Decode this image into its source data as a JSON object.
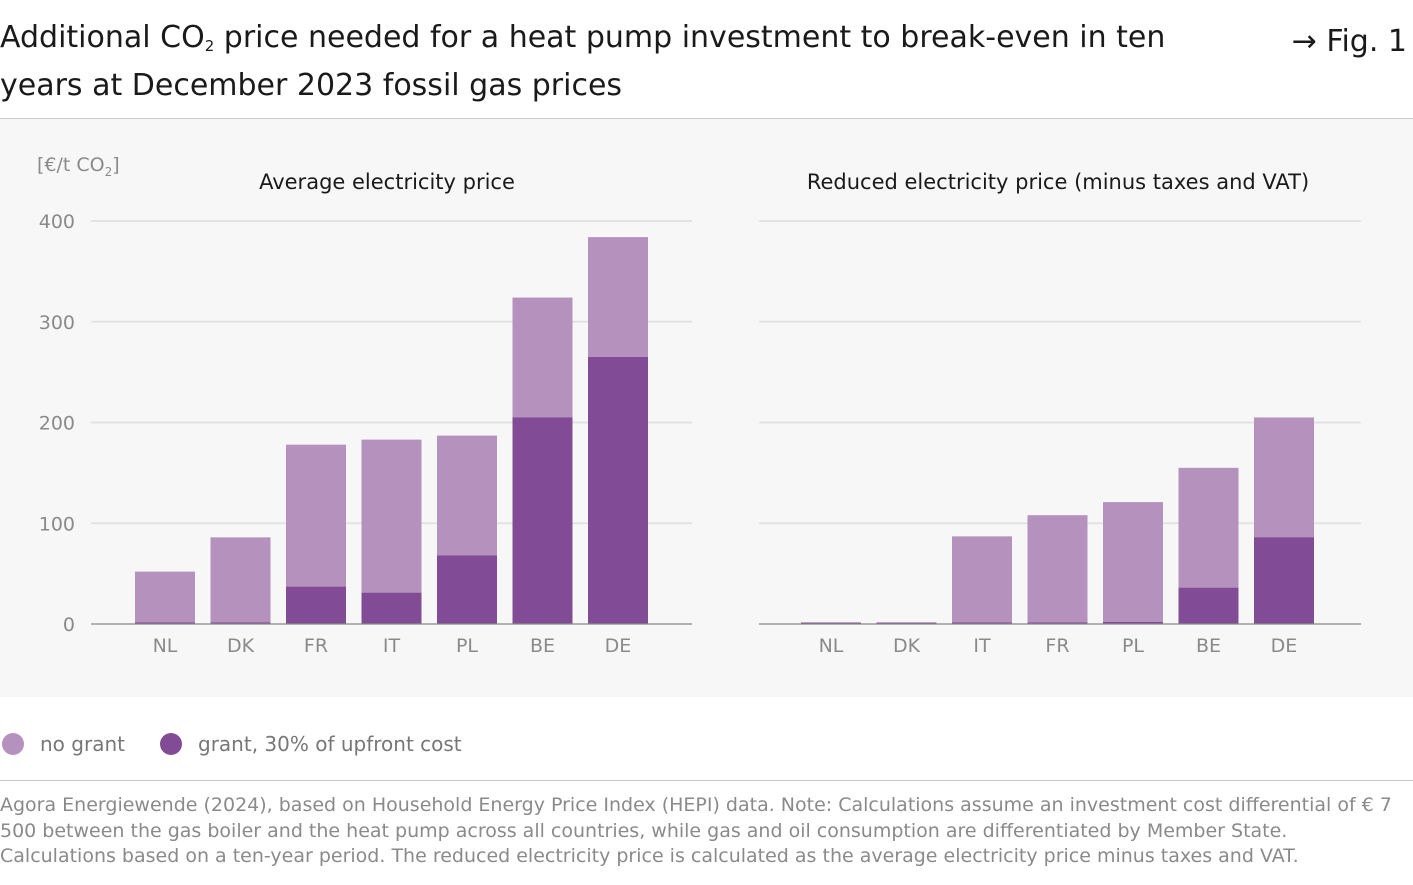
{
  "header": {
    "title_part1": "Additional CO",
    "title_sub": "2",
    "title_part2": " price needed for a heat pump investment to break-even in ten years at December 2023 fossil gas prices",
    "fig_label": "Fig. 1",
    "fig_arrow": "→"
  },
  "colors": {
    "no_grant": "#b592bd",
    "grant": "#814c95",
    "grid": "#e3e3e3",
    "axis": "#888888",
    "tick_text": "#8a8a8a"
  },
  "unit_label": {
    "main": "[€/t CO",
    "sub": "2",
    "end": "]"
  },
  "chart_data": [
    {
      "type": "bar",
      "stacked": false,
      "title": "Average electricity price",
      "ylabel": "[€/t CO2]",
      "ylim": [
        0,
        400
      ],
      "yticks": [
        0,
        100,
        200,
        300,
        400
      ],
      "grid": true,
      "categories": [
        "NL",
        "DK",
        "FR",
        "IT",
        "PL",
        "BE",
        "DE"
      ],
      "series": [
        {
          "name": "no grant",
          "values": [
            52,
            86,
            178,
            183,
            187,
            324,
            384
          ]
        },
        {
          "name": "grant, 30% of upfront cost",
          "values": [
            0,
            0,
            37,
            31,
            68,
            205,
            265
          ]
        }
      ]
    },
    {
      "type": "bar",
      "stacked": false,
      "title": "Reduced electricity price (minus taxes and VAT)",
      "ylim": [
        0,
        400
      ],
      "yticks": [
        0,
        100,
        200,
        300,
        400
      ],
      "grid": true,
      "categories": [
        "NL",
        "DK",
        "IT",
        "FR",
        "PL",
        "BE",
        "DE"
      ],
      "series": [
        {
          "name": "no grant",
          "values": [
            0,
            0,
            87,
            108,
            121,
            155,
            205
          ]
        },
        {
          "name": "grant, 30% of upfront cost",
          "values": [
            0,
            0,
            0,
            0,
            2,
            36,
            86
          ]
        }
      ]
    }
  ],
  "legend": [
    {
      "label": "no grant",
      "color": "#b592bd"
    },
    {
      "label": "grant, 30% of upfront cost",
      "color": "#814c95"
    }
  ],
  "source": "Agora Energiewende (2024), based on Household Energy Price Index (HEPI) data. Note: Calculations assume an investment cost differential of € 7 500 between the gas boiler and the heat pump across all countries, while gas and oil consumption are differentiated by Member State. Calculations based on a ten-year period. The reduced electricity price is calculated as the average electricity price minus taxes and VAT."
}
